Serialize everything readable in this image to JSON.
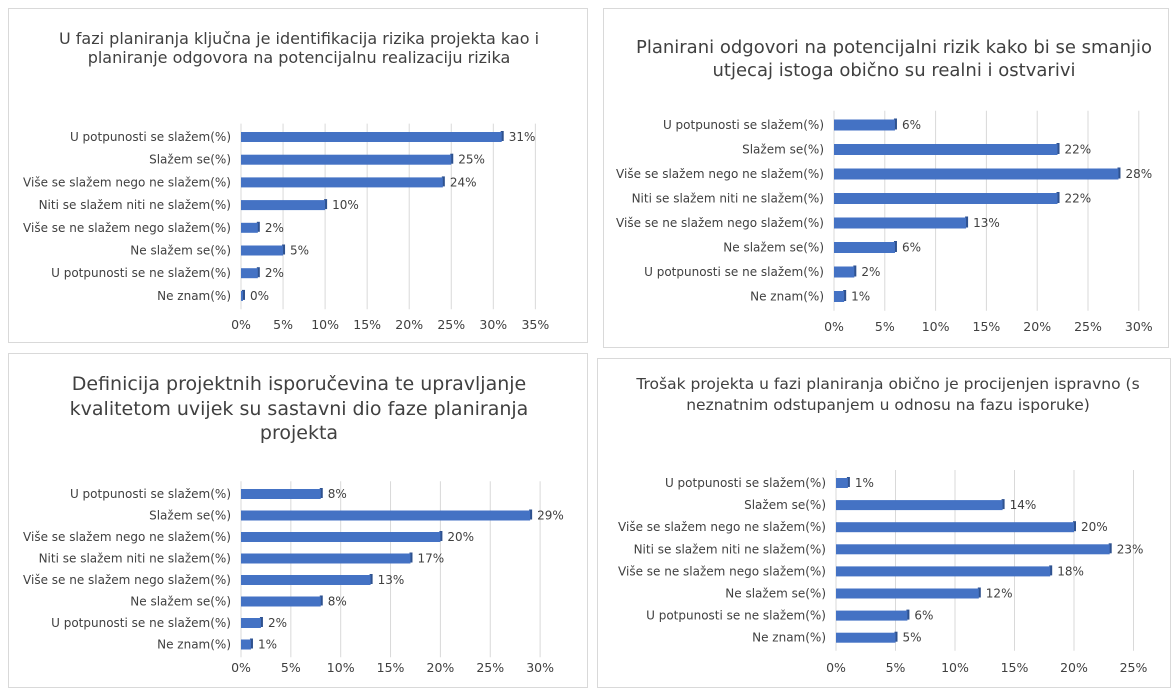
{
  "chart_data": [
    {
      "type": "bar",
      "orientation": "horizontal",
      "title": "U fazi planiranja ključna je identifikacija rizika projekta kao i planiranje odgovora na potencijalnu realizaciju rizika",
      "categories": [
        "U potpunosti se slažem(%)",
        "Slažem se(%)",
        "Više se slažem nego ne slažem(%)",
        "Niti se slažem niti ne slažem(%)",
        "Više se ne slažem nego slažem(%)",
        "Ne slažem se(%)",
        "U potpunosti se ne slažem(%)",
        "Ne znam(%)"
      ],
      "values": [
        31,
        25,
        24,
        10,
        2,
        5,
        2,
        0
      ],
      "data_labels": [
        "31%",
        "25%",
        "24%",
        "10%",
        "2%",
        "5%",
        "2%",
        "0%"
      ],
      "xticks": [
        "0%",
        "5%",
        "10%",
        "15%",
        "20%",
        "25%",
        "30%",
        "35%"
      ],
      "xlim": [
        0,
        35
      ],
      "grid": true,
      "color": "#4472C4"
    },
    {
      "type": "bar",
      "orientation": "horizontal",
      "title": "Planirani odgovori na potencijalni rizik kako bi se smanjio utjecaj istoga obično su realni i ostvarivi",
      "categories": [
        "U potpunosti se slažem(%)",
        "Slažem se(%)",
        "Više se slažem nego ne slažem(%)",
        "Niti se slažem niti ne slažem(%)",
        "Više se ne slažem nego slažem(%)",
        "Ne slažem se(%)",
        "U potpunosti se ne slažem(%)",
        "Ne znam(%)"
      ],
      "values": [
        6,
        22,
        28,
        22,
        13,
        6,
        2,
        1
      ],
      "data_labels": [
        "6%",
        "22%",
        "28%",
        "22%",
        "13%",
        "6%",
        "2%",
        "1%"
      ],
      "xticks": [
        "0%",
        "5%",
        "10%",
        "15%",
        "20%",
        "25%",
        "30%"
      ],
      "xlim": [
        0,
        30
      ],
      "grid": true,
      "color": "#4472C4"
    },
    {
      "type": "bar",
      "orientation": "horizontal",
      "title": "Definicija projektnih isporučevina te upravljanje kvalitetom uvijek su sastavni dio faze planiranja projekta",
      "categories": [
        "U potpunosti se slažem(%)",
        "Slažem se(%)",
        "Više se slažem nego ne slažem(%)",
        "Niti se slažem niti ne slažem(%)",
        "Više se ne slažem nego slažem(%)",
        "Ne slažem se(%)",
        "U potpunosti se ne slažem(%)",
        "Ne znam(%)"
      ],
      "values": [
        8,
        29,
        20,
        17,
        13,
        8,
        2,
        1
      ],
      "data_labels": [
        "8%",
        "29%",
        "20%",
        "17%",
        "13%",
        "8%",
        "2%",
        "1%"
      ],
      "xticks": [
        "0%",
        "5%",
        "10%",
        "15%",
        "20%",
        "25%",
        "30%"
      ],
      "xlim": [
        0,
        30
      ],
      "grid": true,
      "color": "#4472C4"
    },
    {
      "type": "bar",
      "orientation": "horizontal",
      "title": "Trošak projekta u fazi planiranja obično je procijenjen ispravno (s neznatnim odstupanjem u odnosu na fazu isporuke)",
      "categories": [
        "U potpunosti se slažem(%)",
        "Slažem se(%)",
        "Više se slažem nego ne slažem(%)",
        "Niti se slažem niti ne slažem(%)",
        "Više se ne slažem nego slažem(%)",
        "Ne slažem se(%)",
        "U potpunosti se ne slažem(%)",
        "Ne znam(%)"
      ],
      "values": [
        1,
        14,
        20,
        23,
        18,
        12,
        6,
        5
      ],
      "data_labels": [
        "1%",
        "14%",
        "20%",
        "23%",
        "18%",
        "12%",
        "6%",
        "5%"
      ],
      "xticks": [
        "0%",
        "5%",
        "10%",
        "15%",
        "20%",
        "25%"
      ],
      "xlim": [
        0,
        25
      ],
      "grid": true,
      "color": "#4472C4"
    }
  ]
}
